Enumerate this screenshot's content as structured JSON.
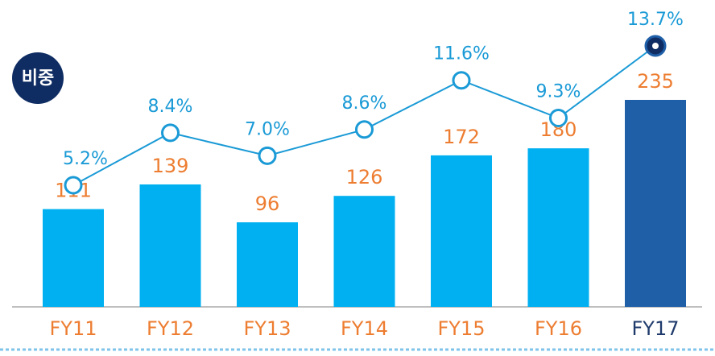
{
  "chart_data": {
    "type": "bar",
    "categories": [
      "FY11",
      "FY12",
      "FY13",
      "FY14",
      "FY15",
      "FY16",
      "FY17"
    ],
    "category_label_colors": [
      "#ed7d31",
      "#ed7d31",
      "#ed7d31",
      "#ed7d31",
      "#ed7d31",
      "#ed7d31",
      "#1f3a6b"
    ],
    "series": [
      {
        "type": "bar",
        "values": [
          111,
          139,
          96,
          126,
          172,
          180,
          235
        ],
        "colors": [
          "#00b0f0",
          "#00b0f0",
          "#00b0f0",
          "#00b0f0",
          "#00b0f0",
          "#00b0f0",
          "#1f5fa8"
        ],
        "label_color": "#ed7d31"
      },
      {
        "type": "line",
        "name": "비중",
        "color": "#1a9ad6",
        "values": [
          5.2,
          8.4,
          7.0,
          8.6,
          11.6,
          9.3,
          13.7
        ],
        "value_labels": [
          "5.2%",
          "8.4%",
          "7.0%",
          "8.6%",
          "11.6%",
          "9.3%",
          "13.7%"
        ],
        "label_color": "#1a9ad6"
      }
    ]
  }
}
